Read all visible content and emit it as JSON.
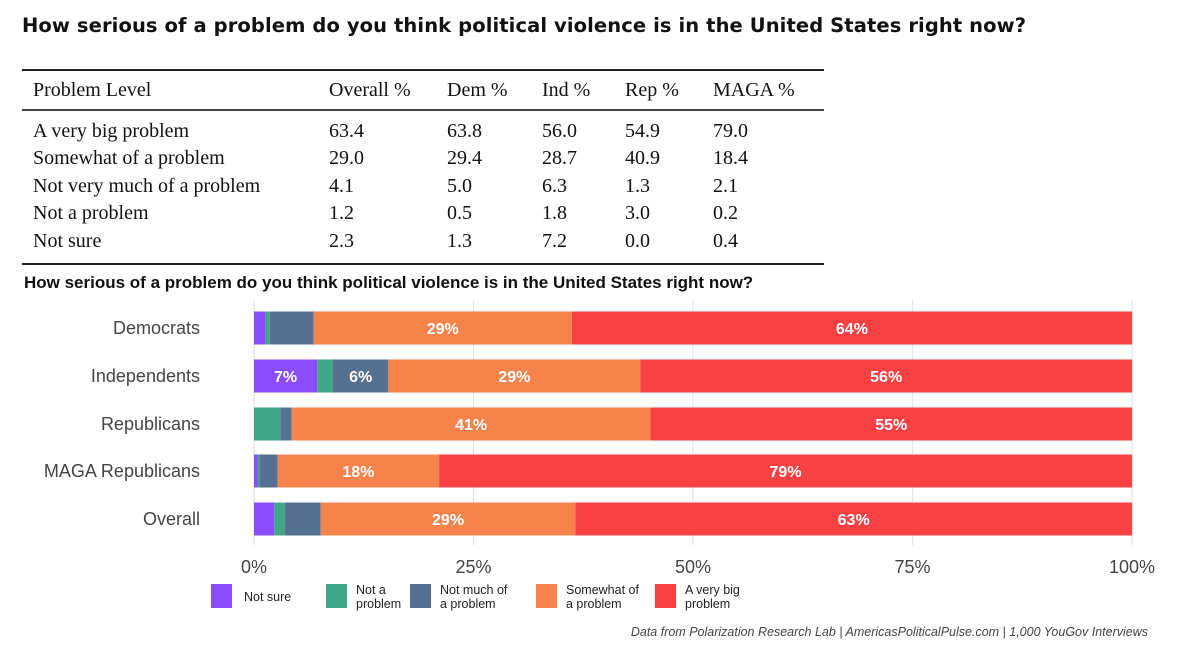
{
  "main_title": "How serious of a problem do you think political violence is in the United States right now?",
  "table": {
    "headers": [
      "Problem Level",
      "Overall %",
      "Dem %",
      "Ind %",
      "Rep %",
      "MAGA %"
    ],
    "rows": [
      [
        "A very big problem",
        "63.4",
        "63.8",
        "56.0",
        "54.9",
        "79.0"
      ],
      [
        "Somewhat of a problem",
        "29.0",
        "29.4",
        "28.7",
        "40.9",
        "18.4"
      ],
      [
        "Not very much of a problem",
        "4.1",
        "5.0",
        "6.3",
        "1.3",
        "2.1"
      ],
      [
        "Not a problem",
        "1.2",
        "0.5",
        "1.8",
        "3.0",
        "0.2"
      ],
      [
        "Not sure",
        "2.3",
        "1.3",
        "7.2",
        "0.0",
        "0.4"
      ]
    ]
  },
  "chart_data": {
    "type": "bar",
    "orientation": "horizontal",
    "stacked": true,
    "title": "How serious of a problem do you think political violence is in the United States right now?",
    "xlabel": "",
    "ylabel": "",
    "xlim": [
      0,
      100
    ],
    "x_ticks": [
      "0%",
      "25%",
      "50%",
      "75%",
      "100%"
    ],
    "grid": true,
    "legend_position": "bottom-left",
    "categories": [
      "Democrats",
      "Independents",
      "Republicans",
      "MAGA Republicans",
      "Overall"
    ],
    "series": [
      {
        "name": "Not sure",
        "color": "#8a4cff",
        "values": [
          1.3,
          7.2,
          0.0,
          0.4,
          2.3
        ],
        "labels": [
          "",
          "7%",
          "",
          "",
          ""
        ]
      },
      {
        "name": "Not a problem",
        "color": "#3fa785",
        "values": [
          0.5,
          1.8,
          3.0,
          0.2,
          1.2
        ],
        "labels": [
          "",
          "",
          "",
          "",
          ""
        ]
      },
      {
        "name": "Not much of a problem",
        "color": "#56718f",
        "values": [
          5.0,
          6.3,
          1.3,
          2.1,
          4.1
        ],
        "labels": [
          "",
          "6%",
          "",
          "",
          ""
        ]
      },
      {
        "name": "Somewhat of a problem",
        "color": "#f6834b",
        "values": [
          29.4,
          28.7,
          40.9,
          18.4,
          29.0
        ],
        "labels": [
          "29%",
          "29%",
          "41%",
          "18%",
          "29%"
        ]
      },
      {
        "name": "A very big problem",
        "color": "#f94144",
        "values": [
          63.8,
          56.0,
          54.9,
          79.0,
          63.4
        ],
        "labels": [
          "64%",
          "56%",
          "55%",
          "79%",
          "63%"
        ]
      }
    ],
    "legend": [
      {
        "line1": "Not sure",
        "line2": ""
      },
      {
        "line1": "Not a",
        "line2": "problem"
      },
      {
        "line1": "Not much of",
        "line2": "a problem"
      },
      {
        "line1": "Somewhat of",
        "line2": "a problem"
      },
      {
        "line1": "A very big",
        "line2": "problem"
      }
    ],
    "caption": "Data from Polarization Research Lab | AmericasPoliticalPulse.com | 1,000 YouGov Interviews"
  }
}
